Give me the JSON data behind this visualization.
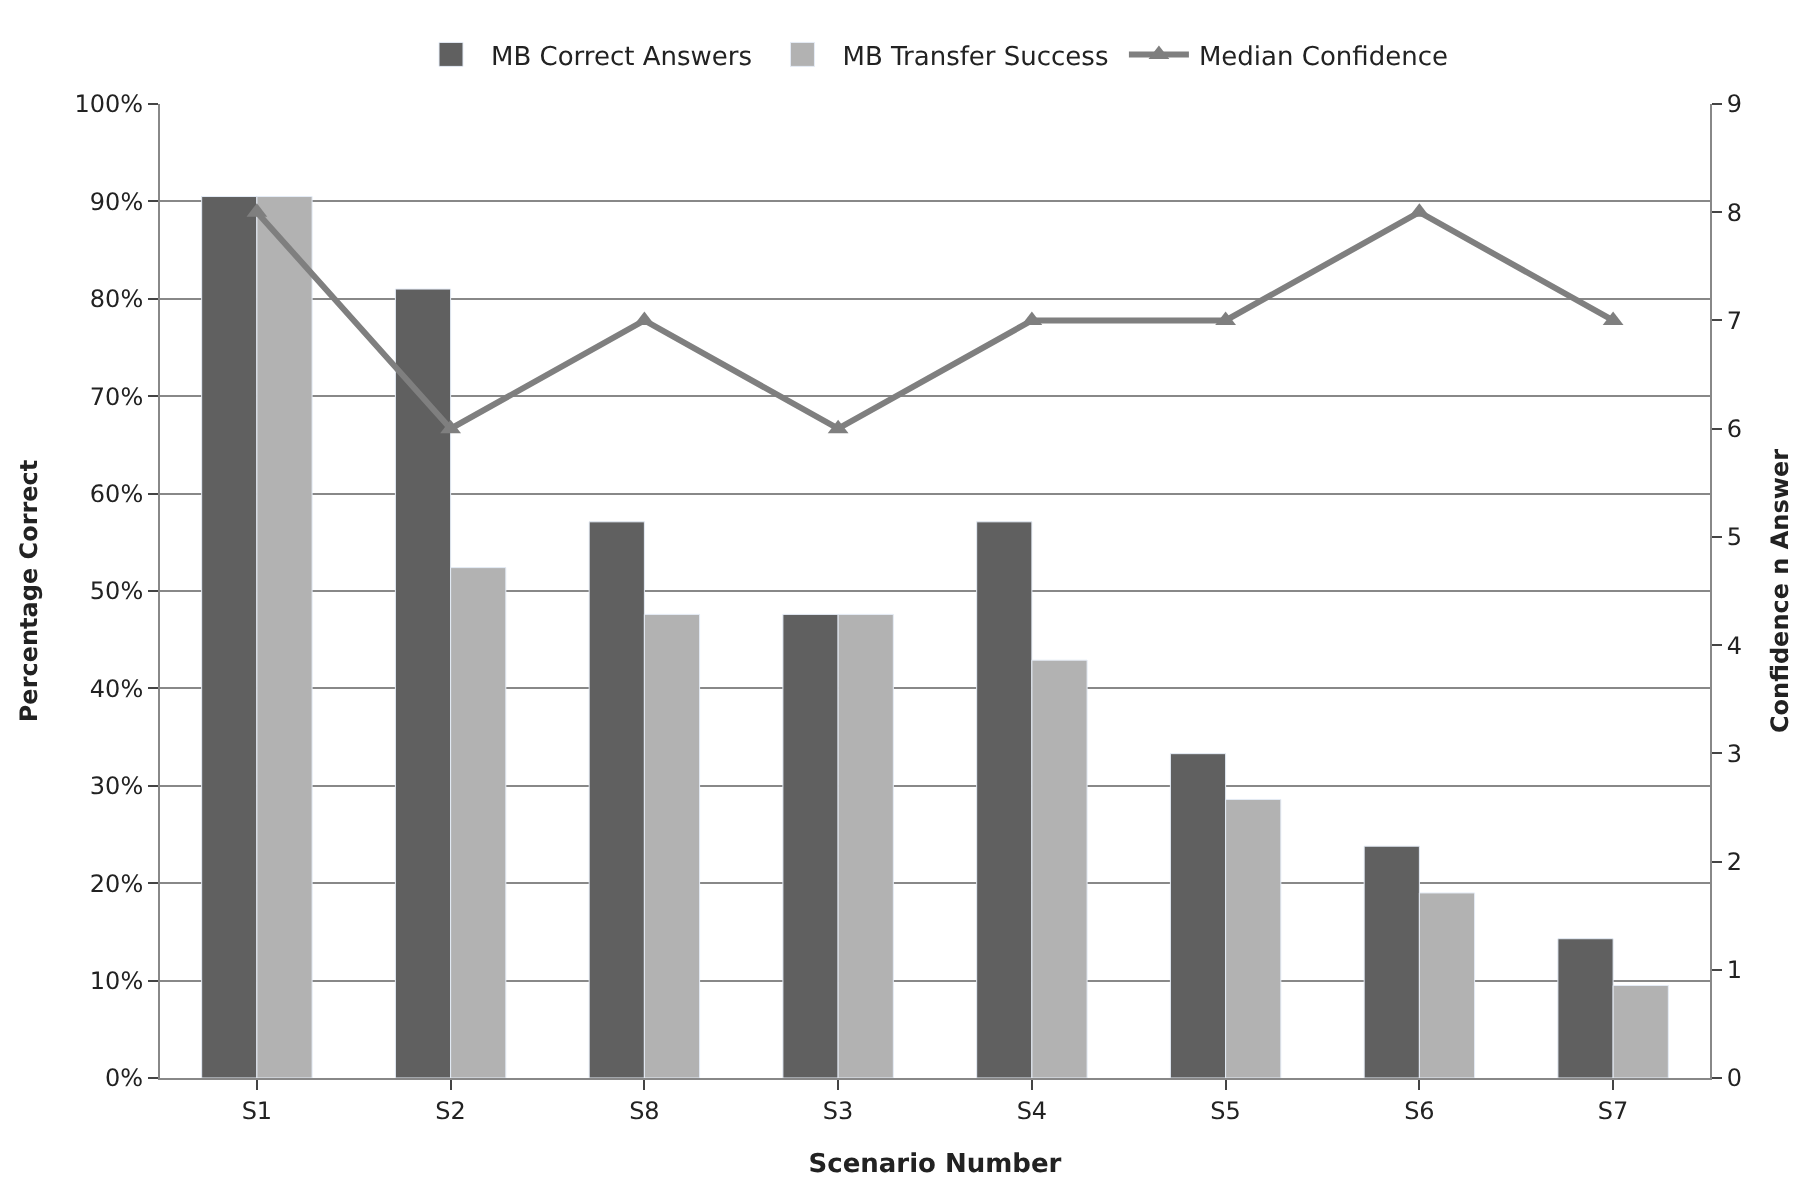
{
  "chart_data": {
    "type": "bar",
    "xlabel": "Scenario Number",
    "ylabel": "Percentage Correct",
    "y2label": "Confidence n Answer",
    "categories": [
      "S1",
      "S2",
      "S8",
      "S3",
      "S4",
      "S5",
      "S6",
      "S7"
    ],
    "series": [
      {
        "name": "MB Correct Answers",
        "color": "#606060",
        "values": [
          90.5,
          81.0,
          57.1,
          47.6,
          57.1,
          33.3,
          23.8,
          14.3
        ]
      },
      {
        "name": "MB Transfer Success",
        "color": "#b2b2b2",
        "values": [
          90.5,
          52.4,
          47.6,
          47.6,
          42.9,
          28.6,
          19.0,
          9.5
        ]
      },
      {
        "name": "Median Confidence",
        "type": "line",
        "axis": "y2",
        "color": "#7f7f7f",
        "marker": "triangle",
        "values": [
          8,
          6,
          7,
          6,
          7,
          7,
          8,
          7
        ]
      }
    ],
    "ylim": [
      0,
      100
    ],
    "yticks": [
      {
        "value": 0,
        "label": "0%"
      },
      {
        "value": 10,
        "label": "10%"
      },
      {
        "value": 20,
        "label": "20%"
      },
      {
        "value": 30,
        "label": "30%"
      },
      {
        "value": 40,
        "label": "40%"
      },
      {
        "value": 50,
        "label": "50%"
      },
      {
        "value": 60,
        "label": "60%"
      },
      {
        "value": 70,
        "label": "70%"
      },
      {
        "value": 80,
        "label": "80%"
      },
      {
        "value": 90,
        "label": "90%"
      },
      {
        "value": 100,
        "label": "100%"
      }
    ],
    "y2lim": [
      0,
      9
    ],
    "y2ticks": [
      0,
      1,
      2,
      3,
      4,
      5,
      6,
      7,
      8,
      9
    ],
    "grid": "y",
    "legend": "top"
  }
}
